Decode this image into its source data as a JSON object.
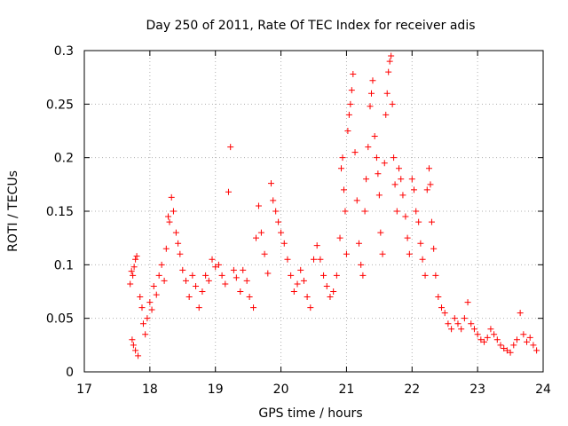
{
  "chart_data": {
    "type": "scatter",
    "title": "Day 250 of 2011, Rate Of TEC Index for receiver adis",
    "xlabel": "GPS time / hours",
    "ylabel": "ROTI / TECUs",
    "xlim": [
      17,
      24
    ],
    "ylim": [
      0,
      0.3
    ],
    "xticks": [
      "17",
      "18",
      "19",
      "20",
      "21",
      "22",
      "23",
      "24"
    ],
    "yticks": [
      "0",
      "0.05",
      "0.1",
      "0.15",
      "0.2",
      "0.25",
      "0.3"
    ],
    "grid": true,
    "marker": "plus",
    "color": "#ff0000",
    "series": [
      {
        "points": [
          [
            17.7,
            0.082
          ],
          [
            17.72,
            0.094
          ],
          [
            17.74,
            0.09
          ],
          [
            17.76,
            0.098
          ],
          [
            17.78,
            0.105
          ],
          [
            17.8,
            0.108
          ],
          [
            17.73,
            0.03
          ],
          [
            17.75,
            0.025
          ],
          [
            17.78,
            0.02
          ],
          [
            17.82,
            0.015
          ],
          [
            17.85,
            0.07
          ],
          [
            17.88,
            0.06
          ],
          [
            17.9,
            0.045
          ],
          [
            17.93,
            0.035
          ],
          [
            17.96,
            0.05
          ],
          [
            18.0,
            0.065
          ],
          [
            18.03,
            0.058
          ],
          [
            18.06,
            0.08
          ],
          [
            18.1,
            0.072
          ],
          [
            18.14,
            0.09
          ],
          [
            18.18,
            0.1
          ],
          [
            18.22,
            0.085
          ],
          [
            18.25,
            0.115
          ],
          [
            18.28,
            0.145
          ],
          [
            18.3,
            0.14
          ],
          [
            18.33,
            0.163
          ],
          [
            18.36,
            0.15
          ],
          [
            18.4,
            0.13
          ],
          [
            18.43,
            0.12
          ],
          [
            18.46,
            0.11
          ],
          [
            18.5,
            0.095
          ],
          [
            18.55,
            0.085
          ],
          [
            18.6,
            0.07
          ],
          [
            18.65,
            0.09
          ],
          [
            18.7,
            0.08
          ],
          [
            18.75,
            0.06
          ],
          [
            18.8,
            0.075
          ],
          [
            18.85,
            0.09
          ],
          [
            18.9,
            0.085
          ],
          [
            18.95,
            0.105
          ],
          [
            19.0,
            0.098
          ],
          [
            19.05,
            0.1
          ],
          [
            19.1,
            0.09
          ],
          [
            19.15,
            0.082
          ],
          [
            19.2,
            0.168
          ],
          [
            19.23,
            0.21
          ],
          [
            19.28,
            0.095
          ],
          [
            19.32,
            0.088
          ],
          [
            19.38,
            0.075
          ],
          [
            19.42,
            0.095
          ],
          [
            19.48,
            0.085
          ],
          [
            19.52,
            0.07
          ],
          [
            19.58,
            0.06
          ],
          [
            19.62,
            0.125
          ],
          [
            19.66,
            0.155
          ],
          [
            19.7,
            0.13
          ],
          [
            19.75,
            0.11
          ],
          [
            19.8,
            0.092
          ],
          [
            19.85,
            0.176
          ],
          [
            19.88,
            0.16
          ],
          [
            19.92,
            0.15
          ],
          [
            19.96,
            0.14
          ],
          [
            20.0,
            0.13
          ],
          [
            20.05,
            0.12
          ],
          [
            20.1,
            0.105
          ],
          [
            20.15,
            0.09
          ],
          [
            20.2,
            0.075
          ],
          [
            20.25,
            0.082
          ],
          [
            20.3,
            0.095
          ],
          [
            20.35,
            0.085
          ],
          [
            20.4,
            0.07
          ],
          [
            20.45,
            0.06
          ],
          [
            20.5,
            0.105
          ],
          [
            20.55,
            0.118
          ],
          [
            20.6,
            0.105
          ],
          [
            20.65,
            0.09
          ],
          [
            20.7,
            0.08
          ],
          [
            20.75,
            0.07
          ],
          [
            20.8,
            0.075
          ],
          [
            20.85,
            0.09
          ],
          [
            20.9,
            0.125
          ],
          [
            20.92,
            0.19
          ],
          [
            20.94,
            0.2
          ],
          [
            20.96,
            0.17
          ],
          [
            20.98,
            0.15
          ],
          [
            21.0,
            0.11
          ],
          [
            21.02,
            0.225
          ],
          [
            21.04,
            0.24
          ],
          [
            21.06,
            0.25
          ],
          [
            21.08,
            0.263
          ],
          [
            21.1,
            0.278
          ],
          [
            21.13,
            0.205
          ],
          [
            21.16,
            0.16
          ],
          [
            21.19,
            0.12
          ],
          [
            21.22,
            0.1
          ],
          [
            21.25,
            0.09
          ],
          [
            21.28,
            0.15
          ],
          [
            21.3,
            0.18
          ],
          [
            21.33,
            0.21
          ],
          [
            21.36,
            0.248
          ],
          [
            21.38,
            0.26
          ],
          [
            21.4,
            0.272
          ],
          [
            21.43,
            0.22
          ],
          [
            21.46,
            0.2
          ],
          [
            21.48,
            0.185
          ],
          [
            21.5,
            0.165
          ],
          [
            21.52,
            0.13
          ],
          [
            21.55,
            0.11
          ],
          [
            21.58,
            0.195
          ],
          [
            21.6,
            0.24
          ],
          [
            21.62,
            0.26
          ],
          [
            21.64,
            0.28
          ],
          [
            21.66,
            0.29
          ],
          [
            21.68,
            0.295
          ],
          [
            21.7,
            0.25
          ],
          [
            21.72,
            0.2
          ],
          [
            21.74,
            0.175
          ],
          [
            21.77,
            0.15
          ],
          [
            21.8,
            0.19
          ],
          [
            21.83,
            0.18
          ],
          [
            21.86,
            0.165
          ],
          [
            21.9,
            0.145
          ],
          [
            21.93,
            0.125
          ],
          [
            21.96,
            0.11
          ],
          [
            22.0,
            0.18
          ],
          [
            22.03,
            0.17
          ],
          [
            22.06,
            0.15
          ],
          [
            22.1,
            0.14
          ],
          [
            22.13,
            0.12
          ],
          [
            22.16,
            0.105
          ],
          [
            22.2,
            0.09
          ],
          [
            22.23,
            0.17
          ],
          [
            22.26,
            0.19
          ],
          [
            22.28,
            0.175
          ],
          [
            22.3,
            0.14
          ],
          [
            22.33,
            0.115
          ],
          [
            22.36,
            0.09
          ],
          [
            22.4,
            0.07
          ],
          [
            22.45,
            0.06
          ],
          [
            22.5,
            0.055
          ],
          [
            22.55,
            0.045
          ],
          [
            22.6,
            0.04
          ],
          [
            22.65,
            0.05
          ],
          [
            22.7,
            0.045
          ],
          [
            22.75,
            0.04
          ],
          [
            22.8,
            0.05
          ],
          [
            22.85,
            0.065
          ],
          [
            22.9,
            0.045
          ],
          [
            22.95,
            0.04
          ],
          [
            23.0,
            0.035
          ],
          [
            23.05,
            0.03
          ],
          [
            23.1,
            0.028
          ],
          [
            23.15,
            0.032
          ],
          [
            23.2,
            0.04
          ],
          [
            23.25,
            0.035
          ],
          [
            23.3,
            0.03
          ],
          [
            23.35,
            0.025
          ],
          [
            23.4,
            0.022
          ],
          [
            23.45,
            0.02
          ],
          [
            23.5,
            0.018
          ],
          [
            23.55,
            0.025
          ],
          [
            23.6,
            0.03
          ],
          [
            23.65,
            0.055
          ],
          [
            23.7,
            0.035
          ],
          [
            23.75,
            0.028
          ],
          [
            23.8,
            0.032
          ],
          [
            23.85,
            0.025
          ],
          [
            23.9,
            0.02
          ]
        ]
      }
    ]
  }
}
